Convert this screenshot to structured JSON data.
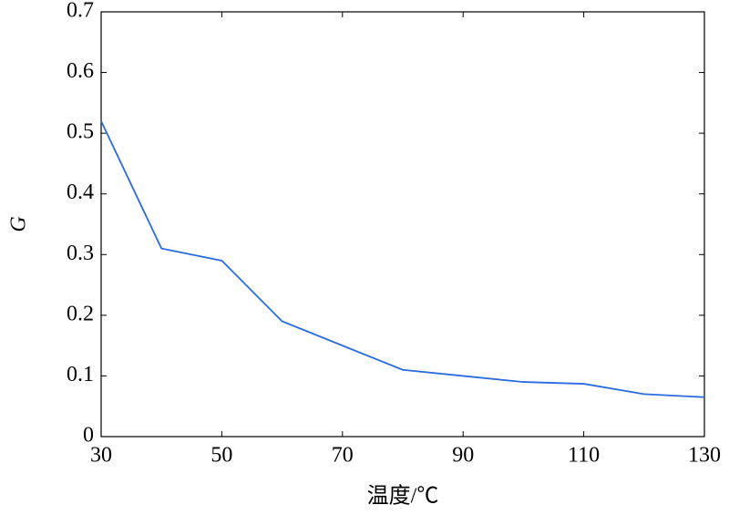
{
  "chart_data": {
    "type": "line",
    "xlabel": "温度/℃",
    "ylabel": "G",
    "x": [
      30,
      40,
      50,
      60,
      70,
      80,
      90,
      100,
      110,
      120,
      130
    ],
    "values": [
      0.52,
      0.31,
      0.29,
      0.19,
      0.15,
      0.11,
      0.1,
      0.09,
      0.087,
      0.07,
      0.065
    ],
    "color": "#2b6be0",
    "xlim": [
      30,
      130
    ],
    "xticks": [
      30,
      50,
      70,
      90,
      110,
      130
    ],
    "ylim": [
      0,
      0.7
    ],
    "yticks": [
      0,
      0.1,
      0.2,
      0.3,
      0.4,
      0.5,
      0.6,
      0.7
    ]
  }
}
